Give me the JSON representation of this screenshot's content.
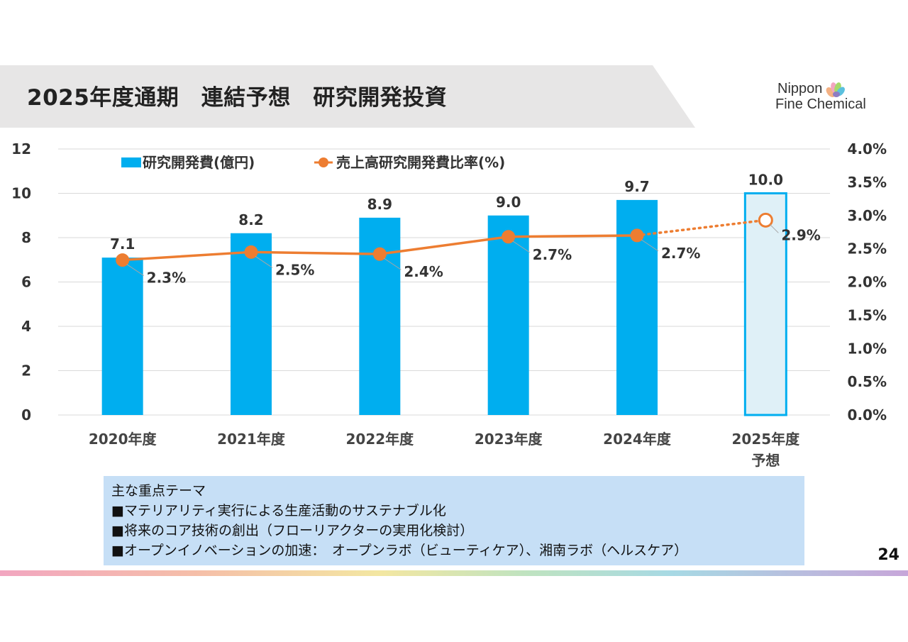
{
  "page": {
    "title": "2025年度通期　連結予想　研究開発投資",
    "logo_line1": "Nippon",
    "logo_line2": "Fine Chemical",
    "page_number": "24",
    "themes": [
      "主な重点テーマ",
      "■マテリアリティ実行による生産活動のサステナブル化",
      "■将来のコア技術の創出（フローリアクターの実用化検討）",
      "■オープンイノベーションの加速：　オープンラボ（ビューティケア）、湘南ラボ（ヘルスケア）"
    ]
  },
  "colors": {
    "bar": "#00aeef",
    "forecast_bar_fill": "#dff0f7",
    "forecast_bar_stroke": "#00aeef",
    "line": "#ed7d31",
    "grid": "#d9d9d9",
    "header_bg": "#e7e6e6",
    "theme_bg": "#c6dff6"
  },
  "chart_data": {
    "type": "bar",
    "categories": [
      "2020年度",
      "2021年度",
      "2022年度",
      "2023年度",
      "2024年度",
      "2025年度\n予想"
    ],
    "series": [
      {
        "name": "研究開発費(億円)",
        "type": "bar",
        "axis": "left",
        "values": [
          7.1,
          8.2,
          8.9,
          9.0,
          9.7,
          10.0
        ],
        "labels": [
          "7.1",
          "8.2",
          "8.9",
          "9.0",
          "9.7",
          "10.0"
        ],
        "forecast_index": 5
      },
      {
        "name": "売上高研究開発費比率(%)",
        "type": "line",
        "axis": "right",
        "values": [
          2.33,
          2.45,
          2.42,
          2.68,
          2.7,
          2.93
        ],
        "labels": [
          "2.3%",
          "2.5%",
          "2.4%",
          "2.7%",
          "2.7%",
          "2.9%"
        ],
        "forecast_index": 5
      }
    ],
    "left_axis": {
      "min": 0,
      "max": 12,
      "ticks": [
        "0",
        "2",
        "4",
        "6",
        "8",
        "10",
        "12"
      ]
    },
    "right_axis": {
      "min": 0,
      "max": 4,
      "ticks": [
        "0.0%",
        "0.5%",
        "1.0%",
        "1.5%",
        "2.0%",
        "2.5%",
        "3.0%",
        "3.5%",
        "4.0%"
      ]
    },
    "legend_position": "top-left",
    "grid": true
  }
}
